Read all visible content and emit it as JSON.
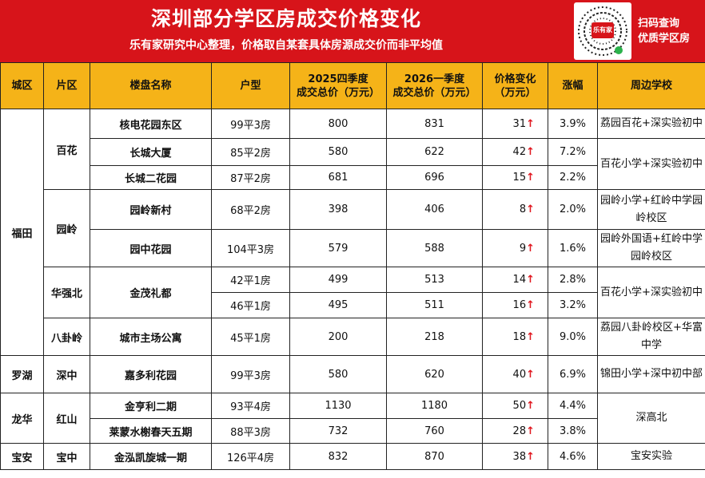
{
  "header": {
    "title": "深圳部分学区房成交价格变化",
    "subtitle": "乐有家研究中心整理，价格取自某套具体房源成交价而非平均值",
    "qr_badge": "乐有家",
    "qr_line1": "扫码查询",
    "qr_line2": "优质学区房"
  },
  "columns": [
    "城区",
    "片区",
    "楼盘名称",
    "户型",
    "2025四季度\n成交总价（万元）",
    "2026一季度\n成交总价（万元）",
    "价格变化\n（万元）",
    "涨幅",
    "周边学校"
  ],
  "rows": [
    {
      "district": "福田",
      "area": "百花",
      "property": "核电花园东区",
      "layout": "99平3房",
      "p2025": "800",
      "p2026": "831",
      "change": "31",
      "pct": "3.9%",
      "school": "荔园百花+深实验初中"
    },
    {
      "district": "福田",
      "area": "百花",
      "property": "长城大厦",
      "layout": "85平2房",
      "p2025": "580",
      "p2026": "622",
      "change": "42",
      "pct": "7.2%",
      "school": "百花小学+深实验初中"
    },
    {
      "district": "福田",
      "area": "百花",
      "property": "长城二花园",
      "layout": "87平2房",
      "p2025": "681",
      "p2026": "696",
      "change": "15",
      "pct": "2.2%",
      "school": "百花小学+深实验初中"
    },
    {
      "district": "福田",
      "area": "园岭",
      "property": "园岭新村",
      "layout": "68平2房",
      "p2025": "398",
      "p2026": "406",
      "change": "8",
      "pct": "2.0%",
      "school": "园岭小学+红岭中学园岭校区"
    },
    {
      "district": "福田",
      "area": "园岭",
      "property": "园中花园",
      "layout": "104平3房",
      "p2025": "579",
      "p2026": "588",
      "change": "9",
      "pct": "1.6%",
      "school": "园岭外国语+红岭中学园岭校区"
    },
    {
      "district": "福田",
      "area": "华强北",
      "property": "金茂礼都",
      "layout": "42平1房",
      "p2025": "499",
      "p2026": "513",
      "change": "14",
      "pct": "2.8%",
      "school": "百花小学+深实验初中"
    },
    {
      "district": "福田",
      "area": "华强北",
      "property": "金茂礼都",
      "layout": "46平1房",
      "p2025": "495",
      "p2026": "511",
      "change": "16",
      "pct": "3.2%",
      "school": "百花小学+深实验初中"
    },
    {
      "district": "福田",
      "area": "八卦岭",
      "property": "城市主场公寓",
      "layout": "45平1房",
      "p2025": "200",
      "p2026": "218",
      "change": "18",
      "pct": "9.0%",
      "school": "荔园八卦岭校区+华富中学"
    },
    {
      "district": "罗湖",
      "area": "深中",
      "property": "嘉多利花园",
      "layout": "99平3房",
      "p2025": "580",
      "p2026": "620",
      "change": "40",
      "pct": "6.9%",
      "school": "锦田小学+深中初中部"
    },
    {
      "district": "龙华",
      "area": "红山",
      "property": "金亨利二期",
      "layout": "93平4房",
      "p2025": "1130",
      "p2026": "1180",
      "change": "50",
      "pct": "4.4%",
      "school": "深高北"
    },
    {
      "district": "龙华",
      "area": "红山",
      "property": "莱蒙水榭春天五期",
      "layout": "88平3房",
      "p2025": "732",
      "p2026": "760",
      "change": "28",
      "pct": "3.8%",
      "school": "深高北"
    },
    {
      "district": "宝安",
      "area": "宝中",
      "property": "金泓凯旋城一期",
      "layout": "126平4房",
      "p2025": "832",
      "p2026": "870",
      "change": "38",
      "pct": "4.6%",
      "school": "宝安实验"
    }
  ],
  "arrow_glyph": "↑",
  "colors": {
    "banner": "#d7141a",
    "header_bg": "#f5b318",
    "arrow": "#e0161e"
  }
}
